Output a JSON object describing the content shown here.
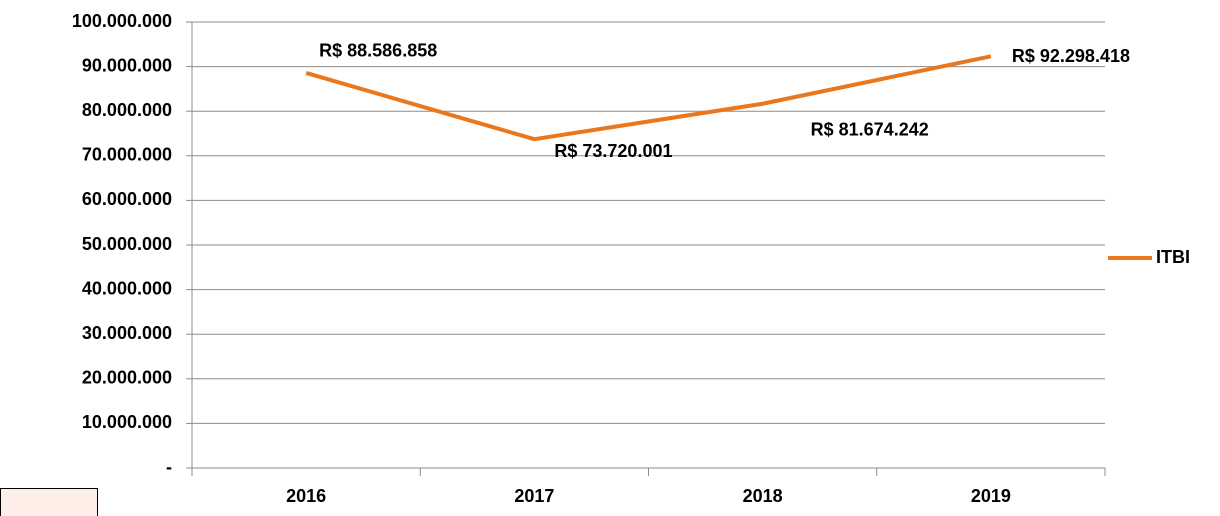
{
  "chart_data": {
    "type": "line",
    "categories": [
      "2016",
      "2017",
      "2018",
      "2019"
    ],
    "series": [
      {
        "name": "ITBI",
        "color": "#e8771e",
        "values": [
          88586858,
          73720001,
          81674242,
          92298418
        ],
        "value_labels": [
          "R$ 88.586.858",
          "R$ 73.720.001",
          "R$ 81.674.242",
          "R$ 92.298.418"
        ]
      }
    ],
    "ylim": [
      0,
      100000000
    ],
    "yticks": [
      {
        "value": 0,
        "label": "-"
      },
      {
        "value": 10000000,
        "label": "10.000.000"
      },
      {
        "value": 20000000,
        "label": "20.000.000"
      },
      {
        "value": 30000000,
        "label": "30.000.000"
      },
      {
        "value": 40000000,
        "label": "40.000.000"
      },
      {
        "value": 50000000,
        "label": "50.000.000"
      },
      {
        "value": 60000000,
        "label": "60.000.000"
      },
      {
        "value": 70000000,
        "label": "70.000.000"
      },
      {
        "value": 80000000,
        "label": "80.000.000"
      },
      {
        "value": 90000000,
        "label": "90.000.000"
      },
      {
        "value": 100000000,
        "label": "100.000.000"
      }
    ],
    "grid": true,
    "legend": "right"
  }
}
